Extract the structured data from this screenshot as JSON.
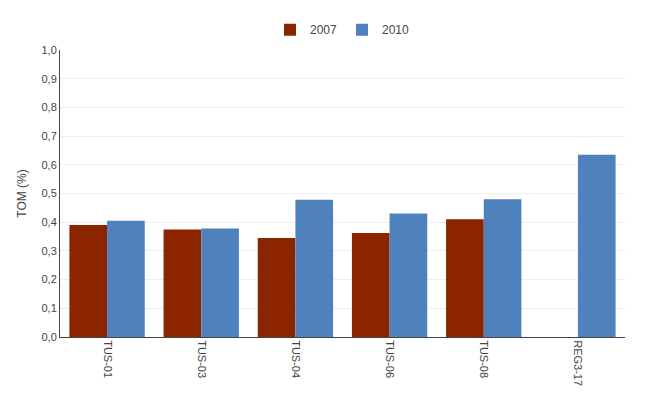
{
  "chart_data": {
    "type": "bar",
    "categories": [
      "TUS-01",
      "TUS-03",
      "TUS-04",
      "TUS-06",
      "TUS-08",
      "REG3-17"
    ],
    "series": [
      {
        "name": "2007",
        "color": "#8B2500",
        "values": [
          0.39,
          0.375,
          0.345,
          0.362,
          0.41,
          null
        ]
      },
      {
        "name": "2010",
        "color": "#4F81BD",
        "values": [
          0.405,
          0.378,
          0.478,
          0.43,
          0.48,
          0.635
        ]
      }
    ],
    "ylabel": "TOM (%)",
    "ylim": [
      0.0,
      1.0
    ],
    "yticks": [
      {
        "value": 0.0,
        "label": "0,0"
      },
      {
        "value": 0.1,
        "label": "0,1"
      },
      {
        "value": 0.2,
        "label": "0,2"
      },
      {
        "value": 0.3,
        "label": "0,3"
      },
      {
        "value": 0.4,
        "label": "0,4"
      },
      {
        "value": 0.5,
        "label": "0,5"
      },
      {
        "value": 0.6,
        "label": "0,6"
      },
      {
        "value": 0.7,
        "label": "0,7"
      },
      {
        "value": 0.8,
        "label": "0,8"
      },
      {
        "value": 0.9,
        "label": "0,9"
      },
      {
        "value": 1.0,
        "label": "1,0"
      }
    ],
    "grid": true,
    "legend": "top"
  }
}
